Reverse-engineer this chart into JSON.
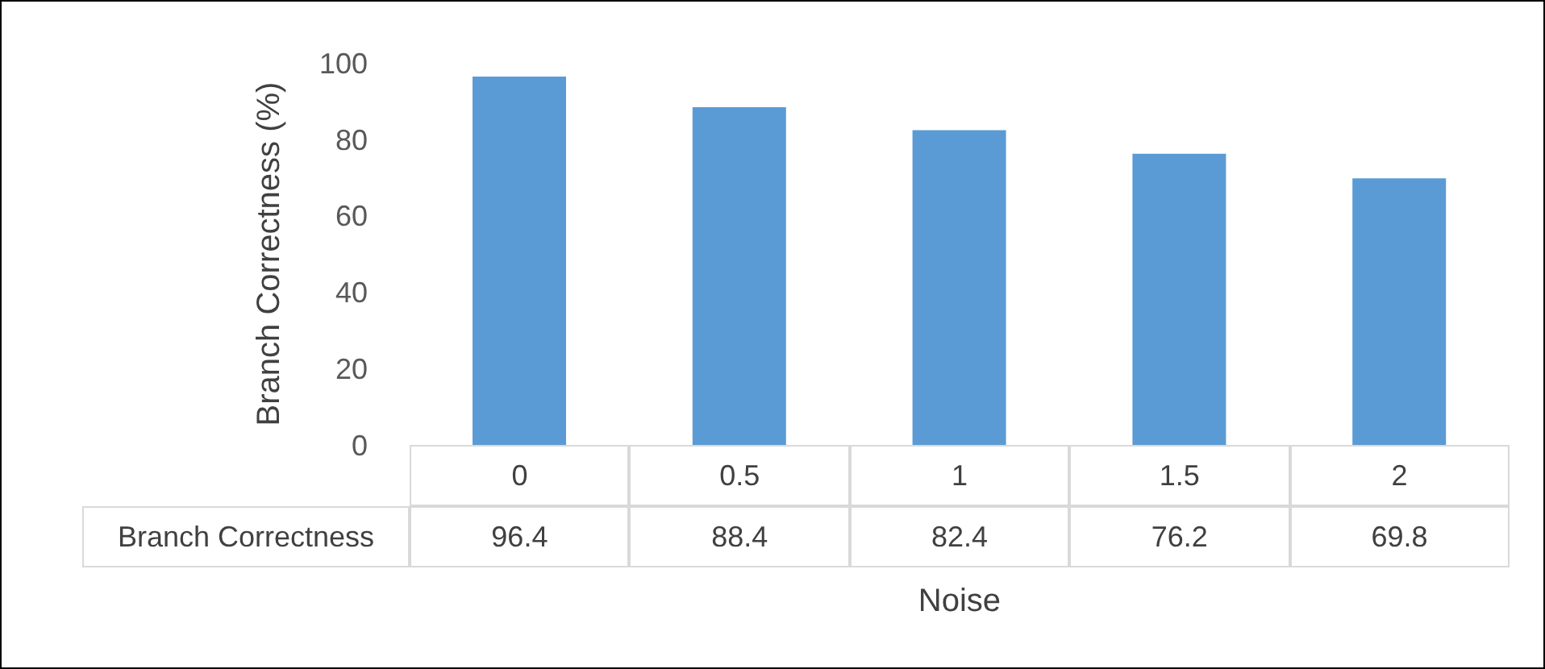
{
  "chart_data": {
    "type": "bar",
    "xlabel": "Noise",
    "ylabel": "Branch Correctness (%)",
    "categories": [
      "0",
      "0.5",
      "1",
      "1.5",
      "2"
    ],
    "series": [
      {
        "name": "Branch Correctness",
        "color": "#5b9bd5",
        "values": [
          96.4,
          88.4,
          82.4,
          76.2,
          69.8
        ]
      }
    ],
    "ylim": [
      0,
      100
    ],
    "yticks": [
      0,
      20,
      40,
      60,
      80,
      100
    ],
    "grid": false,
    "legend": false,
    "data_labels": true
  }
}
